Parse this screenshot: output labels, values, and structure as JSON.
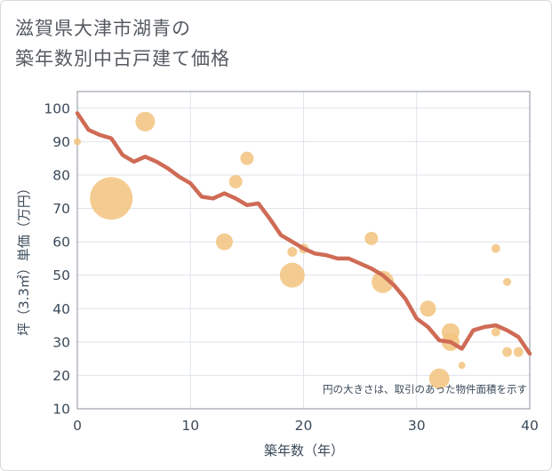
{
  "chart_data": {
    "type": "scatter",
    "title": [
      "滋賀県大津市湖青の",
      "築年数別中古戸建て価格"
    ],
    "xlabel": "築年数（年）",
    "ylabel": "坪（3.3㎡）単価（万円）",
    "xlim": [
      0,
      40
    ],
    "ylim": [
      10,
      105
    ],
    "x_ticks": [
      0,
      10,
      20,
      30,
      40
    ],
    "y_ticks": [
      10,
      20,
      30,
      40,
      50,
      60,
      70,
      80,
      90,
      100
    ],
    "note": "円の大きさは、取引のあった物件面積を示す",
    "colors": {
      "bubble": "#f2c37e",
      "trend": "#cf6b55",
      "grid": "#dfe3ea",
      "axis": "#8a929c"
    },
    "bubbles": [
      {
        "x": 0,
        "y": 90,
        "size": 4
      },
      {
        "x": 3,
        "y": 73,
        "size": 24
      },
      {
        "x": 6,
        "y": 96,
        "size": 11
      },
      {
        "x": 13,
        "y": 60,
        "size": 9.5
      },
      {
        "x": 14,
        "y": 78,
        "size": 7.5
      },
      {
        "x": 15,
        "y": 85,
        "size": 7.5
      },
      {
        "x": 19,
        "y": 50,
        "size": 14
      },
      {
        "x": 19,
        "y": 57,
        "size": 5.5
      },
      {
        "x": 20,
        "y": 58,
        "size": 5.5
      },
      {
        "x": 26,
        "y": 61,
        "size": 7.5
      },
      {
        "x": 27,
        "y": 48,
        "size": 12.5
      },
      {
        "x": 31,
        "y": 40,
        "size": 9
      },
      {
        "x": 32,
        "y": 19,
        "size": 11.5
      },
      {
        "x": 33,
        "y": 33,
        "size": 10
      },
      {
        "x": 33,
        "y": 30,
        "size": 10
      },
      {
        "x": 34,
        "y": 23,
        "size": 4
      },
      {
        "x": 37,
        "y": 58,
        "size": 5
      },
      {
        "x": 37,
        "y": 33,
        "size": 5
      },
      {
        "x": 38,
        "y": 48,
        "size": 4.5
      },
      {
        "x": 38,
        "y": 27,
        "size": 5.5
      },
      {
        "x": 39,
        "y": 27,
        "size": 5.5
      }
    ],
    "trend": {
      "x": [
        0,
        1,
        2,
        3,
        4,
        5,
        6,
        7,
        8,
        9,
        10,
        11,
        12,
        13,
        14,
        15,
        16,
        17,
        18,
        19,
        20,
        21,
        22,
        23,
        24,
        25,
        26,
        27,
        28,
        29,
        30,
        31,
        32,
        33,
        34,
        35,
        36,
        37,
        38,
        39,
        40
      ],
      "y": [
        98.5,
        93.5,
        92,
        91,
        86,
        84,
        85.5,
        84,
        82,
        79.5,
        77.5,
        73.5,
        73,
        74.5,
        73,
        71,
        71.5,
        67,
        62,
        60,
        58,
        56.5,
        56,
        55,
        55,
        53.5,
        52,
        50,
        47,
        43,
        37,
        34.5,
        30.5,
        30,
        28,
        33.5,
        34.5,
        35,
        33.5,
        31.5,
        26.5
      ]
    }
  }
}
